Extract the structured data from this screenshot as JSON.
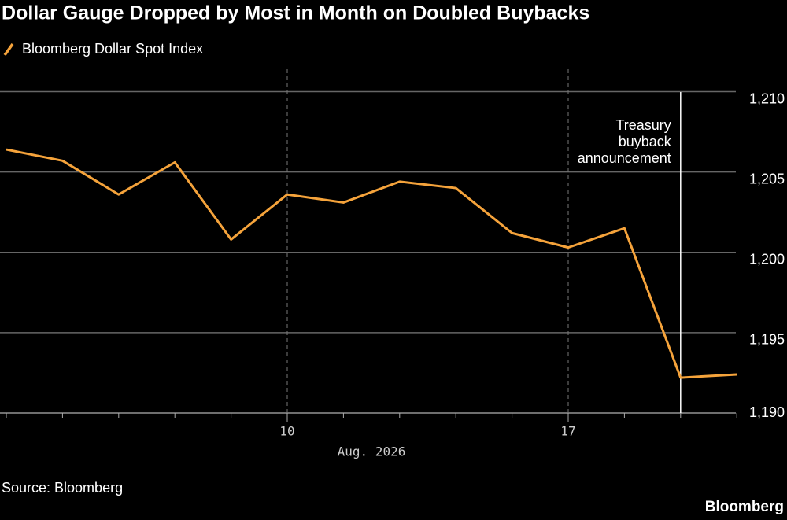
{
  "chart_data": {
    "type": "line",
    "title": "Dollar Gauge Dropped by Most in Month on Doubled Buybacks",
    "x_label": "Aug. 2026",
    "categories": [
      null,
      null,
      null,
      null,
      null,
      "10",
      null,
      null,
      null,
      null,
      "17",
      null,
      null,
      null
    ],
    "series": [
      {
        "name": "Bloomberg Dollar Spot Index",
        "color": "#f5a33b",
        "values": [
          1206.4,
          1205.7,
          1203.6,
          1205.6,
          1200.8,
          1203.6,
          1203.1,
          1204.4,
          1204.0,
          1201.2,
          1200.3,
          1201.5,
          1192.2,
          1192.4
        ]
      }
    ],
    "ylim": [
      1190,
      1211.2
    ],
    "yticks": [
      {
        "value": 1190,
        "label": "1,190"
      },
      {
        "value": 1195,
        "label": "1,195"
      },
      {
        "value": 1200,
        "label": "1,200"
      },
      {
        "value": 1205,
        "label": "1,205"
      },
      {
        "value": 1210,
        "label": "1,210"
      }
    ],
    "grid": true,
    "annotation": [
      "Treasury",
      "buyback",
      "announcement"
    ],
    "source": "Source: Bloomberg",
    "brand": "Bloomberg"
  }
}
